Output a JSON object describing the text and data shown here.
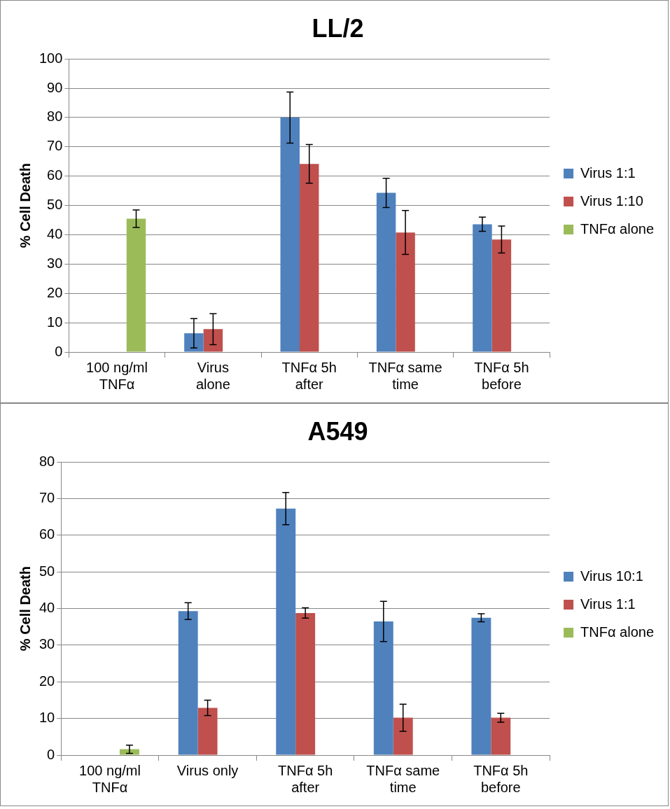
{
  "chart_data": [
    {
      "type": "bar",
      "title": "LL/2",
      "ylabel": "% Cell Death",
      "categories": [
        "100 ng/ml TNFα",
        "Virus alone",
        "TNFα 5h after",
        "TNFα same time",
        "TNFα 5h before"
      ],
      "series": [
        {
          "name": "Virus 1:1",
          "color": "#4f81bd",
          "values": [
            null,
            6.4,
            80,
            54.3,
            43.6
          ],
          "errors": [
            null,
            5,
            8.7,
            5,
            2.4
          ]
        },
        {
          "name": "Virus 1:10",
          "color": "#c0504d",
          "values": [
            null,
            7.8,
            64.2,
            40.8,
            38.4
          ],
          "errors": [
            null,
            5.3,
            6.6,
            7.5,
            4.6
          ]
        },
        {
          "name": "TNFα alone",
          "color": "#9bbb59",
          "values": [
            45.5,
            null,
            null,
            null,
            null
          ],
          "errors": [
            3,
            null,
            null,
            null,
            null
          ]
        }
      ],
      "ylim": [
        0,
        100
      ],
      "yticks": [
        0,
        10,
        20,
        30,
        40,
        50,
        60,
        70,
        80,
        90,
        100
      ],
      "grid": "y",
      "legend": "right"
    },
    {
      "type": "bar",
      "title": "A549",
      "ylabel": "% Cell Death",
      "categories": [
        "100 ng/ml TNFα",
        "Virus only",
        "TNFα 5h after",
        "TNFα same time",
        "TNFα 5h before"
      ],
      "series": [
        {
          "name": "Virus 10:1",
          "color": "#4f81bd",
          "values": [
            null,
            39.3,
            67.3,
            36.5,
            37.5
          ],
          "errors": [
            null,
            2.3,
            4.4,
            5.5,
            1.1
          ]
        },
        {
          "name": "Virus 1:1",
          "color": "#c0504d",
          "values": [
            null,
            12.9,
            38.8,
            10.2,
            10.2
          ],
          "errors": [
            null,
            2.1,
            1.4,
            3.7,
            1.2
          ]
        },
        {
          "name": "TNFα alone",
          "color": "#9bbb59",
          "values": [
            1.6,
            null,
            null,
            null,
            null
          ],
          "errors": [
            1.1,
            null,
            null,
            null,
            null
          ]
        }
      ],
      "ylim": [
        0,
        80
      ],
      "yticks": [
        0,
        10,
        20,
        30,
        40,
        50,
        60,
        70,
        80
      ],
      "grid": "y",
      "legend": "right"
    }
  ]
}
